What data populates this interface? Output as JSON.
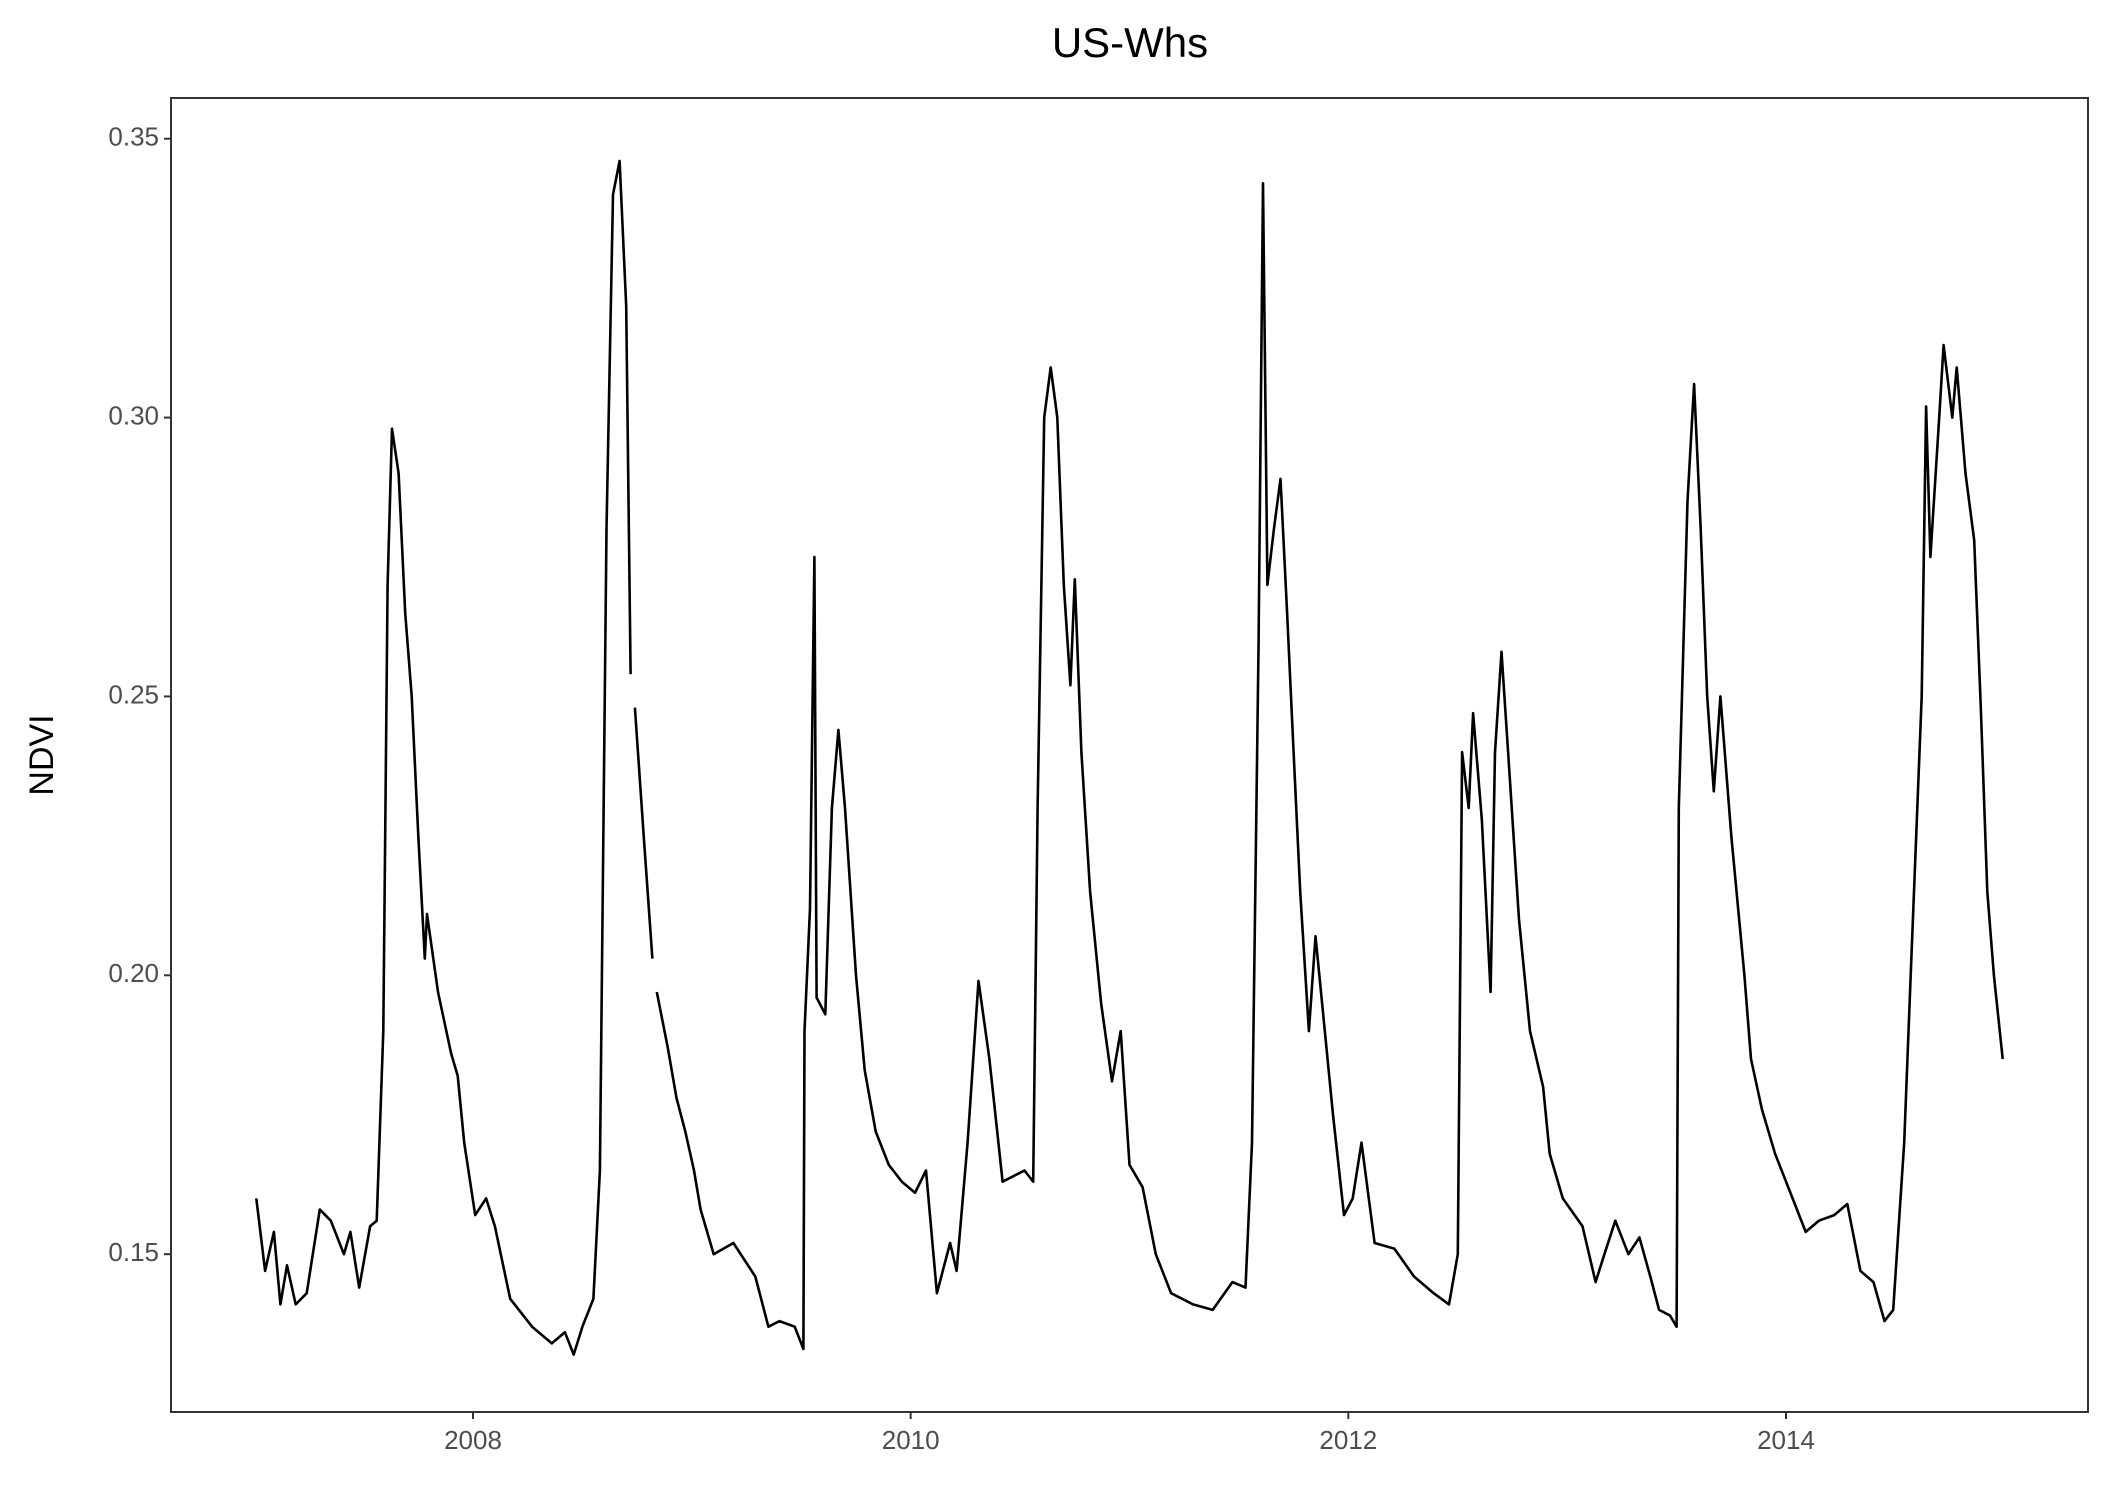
{
  "chart_data": {
    "type": "line",
    "title": "US-Whs",
    "y_label": "NDVI",
    "x": [
      2007.01,
      2007.05,
      2007.09,
      2007.12,
      2007.15,
      2007.19,
      2007.24,
      2007.3,
      2007.35,
      2007.41,
      2007.44,
      2007.48,
      2007.53,
      2007.56,
      2007.59,
      2007.61,
      2007.63,
      2007.66,
      2007.69,
      2007.72,
      2007.75,
      2007.78,
      2007.79,
      2007.84,
      2007.9,
      2007.93,
      2007.96,
      2008.01,
      2008.06,
      2008.1,
      2008.17,
      2008.27,
      2008.36,
      2008.42,
      2008.46,
      2008.5,
      2008.55,
      2008.58,
      2008.61,
      2008.64,
      2008.67,
      2008.7,
      2008.72,
      2008.73,
      2008.74,
      2008.78,
      2008.82,
      2008.83,
      2008.84,
      2008.89,
      2008.93,
      2008.97,
      2009.01,
      2009.04,
      2009.1,
      2009.19,
      2009.29,
      2009.35,
      2009.4,
      2009.47,
      2009.51,
      2009.515,
      2009.54,
      2009.56,
      2009.57,
      2009.61,
      2009.64,
      2009.67,
      2009.7,
      2009.75,
      2009.79,
      2009.84,
      2009.9,
      2009.96,
      2010.02,
      2010.07,
      2010.12,
      2010.18,
      2010.21,
      2010.26,
      2010.31,
      2010.36,
      2010.42,
      2010.52,
      2010.56,
      2010.58,
      2010.61,
      2010.64,
      2010.67,
      2010.7,
      2010.73,
      2010.75,
      2010.78,
      2010.82,
      2010.87,
      2010.92,
      2010.96,
      2011.0,
      2011.06,
      2011.12,
      2011.19,
      2011.29,
      2011.38,
      2011.47,
      2011.53,
      2011.56,
      2011.59,
      2011.61,
      2011.63,
      2011.66,
      2011.69,
      2011.72,
      2011.75,
      2011.78,
      2011.82,
      2011.85,
      2011.88,
      2011.93,
      2011.98,
      2012.02,
      2012.06,
      2012.12,
      2012.21,
      2012.3,
      2012.39,
      2012.46,
      2012.5,
      2012.52,
      2012.55,
      2012.57,
      2012.61,
      2012.65,
      2012.67,
      2012.7,
      2012.73,
      2012.78,
      2012.83,
      2012.89,
      2012.92,
      2012.98,
      2013.07,
      2013.13,
      2013.17,
      2013.22,
      2013.28,
      2013.33,
      2013.38,
      2013.42,
      2013.47,
      2013.5,
      2013.51,
      2013.55,
      2013.58,
      2013.61,
      2013.64,
      2013.67,
      2013.7,
      2013.75,
      2013.81,
      2013.84,
      2013.89,
      2013.95,
      2014.03,
      2014.09,
      2014.15,
      2014.22,
      2014.28,
      2014.34,
      2014.4,
      2014.45,
      2014.49,
      2014.54,
      2014.57,
      2014.62,
      2014.64,
      2014.66,
      2014.7,
      2014.72,
      2014.76,
      2014.78,
      2014.82,
      2014.86,
      2014.89,
      2014.92,
      2014.95,
      2014.99
    ],
    "series": [
      {
        "color": "#000000",
        "values": [
          0.16,
          0.147,
          0.154,
          0.141,
          0.148,
          0.141,
          0.143,
          0.158,
          0.156,
          0.15,
          0.154,
          0.144,
          0.155,
          0.156,
          0.19,
          0.27,
          0.298,
          0.29,
          0.265,
          0.25,
          0.225,
          0.203,
          0.211,
          0.197,
          0.186,
          0.182,
          0.17,
          0.157,
          0.16,
          0.155,
          0.142,
          0.137,
          0.134,
          0.136,
          0.132,
          0.137,
          0.142,
          0.165,
          0.28,
          0.34,
          0.346,
          0.32,
          0.254,
          null,
          0.248,
          0.225,
          0.203,
          null,
          0.197,
          0.187,
          0.178,
          0.172,
          0.165,
          0.158,
          0.15,
          0.152,
          0.146,
          0.137,
          0.138,
          0.137,
          0.133,
          0.19,
          0.212,
          0.275,
          0.196,
          0.193,
          0.23,
          0.244,
          0.23,
          0.2,
          0.183,
          0.172,
          0.166,
          0.163,
          0.161,
          0.165,
          0.143,
          0.152,
          0.147,
          0.17,
          0.199,
          0.185,
          0.163,
          0.165,
          0.163,
          0.23,
          0.3,
          0.309,
          0.3,
          0.27,
          0.252,
          0.271,
          0.24,
          0.215,
          0.195,
          0.181,
          0.19,
          0.166,
          0.162,
          0.15,
          0.143,
          0.141,
          0.14,
          0.145,
          0.144,
          0.17,
          0.26,
          0.342,
          0.27,
          0.28,
          0.289,
          0.265,
          0.24,
          0.215,
          0.19,
          0.207,
          0.195,
          0.175,
          0.157,
          0.16,
          0.17,
          0.152,
          0.151,
          0.146,
          0.143,
          0.141,
          0.15,
          0.24,
          0.23,
          0.247,
          0.228,
          0.197,
          0.24,
          0.258,
          0.24,
          0.21,
          0.19,
          0.18,
          0.168,
          0.16,
          0.155,
          0.145,
          0.15,
          0.156,
          0.15,
          0.153,
          0.146,
          0.14,
          0.139,
          0.137,
          0.23,
          0.285,
          0.306,
          0.28,
          0.25,
          0.233,
          0.25,
          0.225,
          0.2,
          0.185,
          0.176,
          0.168,
          0.16,
          0.154,
          0.156,
          0.157,
          0.159,
          0.147,
          0.145,
          0.138,
          0.14,
          0.17,
          0.2,
          0.25,
          0.302,
          0.275,
          0.3,
          0.313,
          0.3,
          0.309,
          0.29,
          0.278,
          0.248,
          0.215,
          0.2,
          0.185
        ]
      }
    ],
    "xlim": [
      2006.62,
      2015.38
    ],
    "xticks": [
      2008,
      2010,
      2012,
      2014
    ],
    "ylim": [
      0.1217,
      0.3573
    ],
    "yticks": [
      0.15,
      {
        "value": 0.2,
        "label": "0.20"
      },
      0.25,
      {
        "value": 0.3,
        "label": "0.30"
      },
      0.35
    ]
  }
}
